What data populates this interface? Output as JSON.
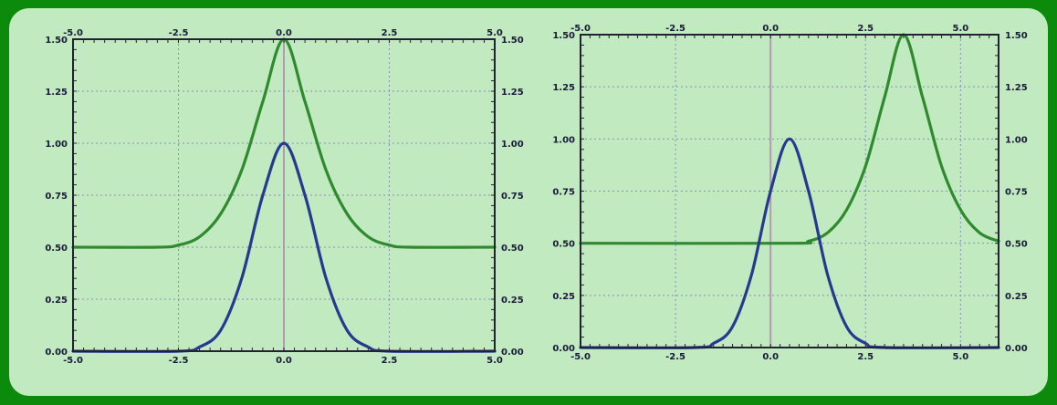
{
  "colors": {
    "frame": "#0b8a0b",
    "panel": "#c2eac0",
    "green_curve": "#2f8a2f",
    "blue_curve": "#26398f",
    "axis": "#222233",
    "grid": "#8c8cb8",
    "center_line": "#b49ab0"
  },
  "chart_data": [
    {
      "type": "line",
      "title": "",
      "xlabel": "",
      "ylabel": "",
      "xlim": [
        -5.0,
        5.0
      ],
      "ylim": [
        0.0,
        1.5
      ],
      "grid": true,
      "x_ticks": [
        -5.0,
        -2.5,
        0.0,
        2.5,
        5.0
      ],
      "x_tick_labels": [
        "-5.0",
        "-2.5",
        "0.0",
        "2.5",
        "5.0"
      ],
      "y_ticks": [
        0.0,
        0.25,
        0.5,
        0.75,
        1.0,
        1.25,
        1.5
      ],
      "y_tick_labels": [
        "0.00",
        "0.25",
        "0.50",
        "0.75",
        "1.00",
        "1.25",
        "1.50"
      ],
      "series": [
        {
          "color": "#2f8a2f",
          "x": [
            -5.0,
            -3.0,
            -2.5,
            -2.0,
            -1.5,
            -1.0,
            -0.5,
            0.0,
            0.5,
            1.0,
            1.5,
            2.0,
            2.5,
            3.0,
            5.0
          ],
          "y": [
            0.5,
            0.5,
            0.51,
            0.55,
            0.66,
            0.87,
            1.2,
            1.5,
            1.2,
            0.87,
            0.66,
            0.55,
            0.51,
            0.5,
            0.5
          ]
        },
        {
          "color": "#26398f",
          "x": [
            -5.0,
            -2.5,
            -2.0,
            -1.5,
            -1.0,
            -0.5,
            0.0,
            0.5,
            1.0,
            1.5,
            2.0,
            2.5,
            5.0
          ],
          "y": [
            0.0,
            0.0,
            0.02,
            0.1,
            0.35,
            0.75,
            1.0,
            0.75,
            0.35,
            0.1,
            0.02,
            0.0,
            0.0
          ]
        }
      ]
    },
    {
      "type": "line",
      "title": "",
      "xlabel": "",
      "ylabel": "",
      "xlim": [
        -5.0,
        6.0
      ],
      "ylim": [
        0.0,
        1.5
      ],
      "grid": true,
      "x_ticks": [
        -5.0,
        -2.5,
        0.0,
        2.5,
        5.0
      ],
      "x_tick_labels": [
        "-5.0",
        "-2.5",
        "0.0",
        "2.5",
        "5.0"
      ],
      "y_ticks": [
        0.0,
        0.25,
        0.5,
        0.75,
        1.0,
        1.25,
        1.5
      ],
      "y_tick_labels": [
        "0.00",
        "0.25",
        "0.50",
        "0.75",
        "1.00",
        "1.25",
        "1.50"
      ],
      "series": [
        {
          "color": "#2f8a2f",
          "x": [
            -5.0,
            0.5,
            1.0,
            1.5,
            2.0,
            2.5,
            3.0,
            3.5,
            4.0,
            4.5,
            5.0,
            5.5,
            6.0
          ],
          "y": [
            0.5,
            0.5,
            0.51,
            0.55,
            0.66,
            0.87,
            1.2,
            1.5,
            1.2,
            0.87,
            0.66,
            0.55,
            0.51
          ]
        },
        {
          "color": "#26398f",
          "x": [
            -5.0,
            -2.0,
            -1.5,
            -1.0,
            -0.5,
            0.0,
            0.5,
            1.0,
            1.5,
            2.0,
            2.5,
            3.0,
            6.0
          ],
          "y": [
            0.0,
            0.0,
            0.02,
            0.1,
            0.35,
            0.75,
            1.0,
            0.75,
            0.35,
            0.1,
            0.02,
            0.0,
            0.0
          ]
        }
      ]
    }
  ]
}
